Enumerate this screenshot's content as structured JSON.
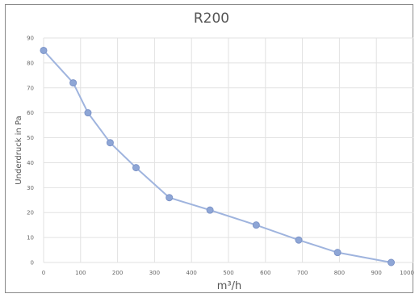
{
  "chart_data": {
    "type": "line",
    "title": "R200",
    "xlabel": "m³/h",
    "ylabel": "Underdruck in Pa",
    "xlim": [
      0,
      1000
    ],
    "ylim": [
      0,
      90
    ],
    "x_ticks": [
      0,
      100,
      200,
      300,
      400,
      500,
      600,
      700,
      800,
      900,
      1000
    ],
    "y_ticks": [
      0,
      10,
      20,
      30,
      40,
      50,
      60,
      70,
      80,
      90
    ],
    "x_tick_labels": [
      "0",
      "100",
      "200",
      "300",
      "400",
      "500",
      "600",
      "700",
      "800",
      "900",
      "1000"
    ],
    "y_tick_labels": [
      "0",
      "10",
      "20",
      "30",
      "40",
      "50",
      "60",
      "70",
      "80",
      "90"
    ],
    "grid": true,
    "legend": "none",
    "series": [
      {
        "x": [
          0,
          80,
          120,
          180,
          250,
          340,
          450,
          575,
          690,
          795,
          940
        ],
        "values": [
          85,
          72,
          60,
          48,
          38,
          26,
          21,
          15,
          9,
          4,
          0
        ],
        "color": "#8ea6d6"
      }
    ]
  }
}
